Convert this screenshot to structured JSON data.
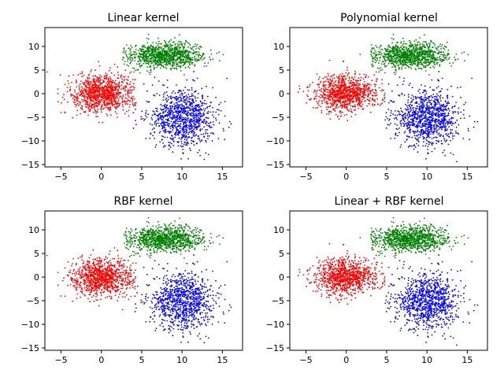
{
  "chart_data": [
    {
      "type": "scatter",
      "title": "Linear kernel",
      "xlabel": "",
      "ylabel": "",
      "xlim": [
        -7,
        17.5
      ],
      "ylim": [
        -15.5,
        14
      ],
      "xticks": [
        -5,
        0,
        5,
        10,
        15
      ],
      "yticks": [
        -15,
        -10,
        -5,
        0,
        5,
        10
      ],
      "grid": false,
      "boundary_cut": {
        "red_xmax": 4.2,
        "green_xmin": 2.6,
        "blue_xmin": 3.8
      },
      "series": [
        {
          "color": "#ff0000",
          "center": [
            0,
            0
          ],
          "spread": [
            1.9,
            2.0
          ],
          "count": 1000
        },
        {
          "color": "#008000",
          "center": [
            8,
            8
          ],
          "spread": [
            2.2,
            1.4
          ],
          "count": 1000
        },
        {
          "color": "#0000ff",
          "center": [
            10,
            -5
          ],
          "spread": [
            2.0,
            3.0
          ],
          "count": 1000
        }
      ]
    },
    {
      "type": "scatter",
      "title": "Polynomial kernel",
      "xlabel": "",
      "ylabel": "",
      "xlim": [
        -7,
        17.5
      ],
      "ylim": [
        -15.5,
        14
      ],
      "xticks": [
        -5,
        0,
        5,
        10,
        15
      ],
      "yticks": [
        -15,
        -10,
        -5,
        0,
        5,
        10
      ],
      "grid": false,
      "boundary_cut": {
        "red_xmax": 4.8,
        "green_xmin": 3.0,
        "blue_xmin": 4.8
      },
      "series": [
        {
          "color": "#ff0000",
          "center": [
            0,
            0
          ],
          "spread": [
            1.9,
            2.0
          ],
          "count": 1000
        },
        {
          "color": "#008000",
          "center": [
            8,
            8
          ],
          "spread": [
            2.2,
            1.4
          ],
          "count": 1000
        },
        {
          "color": "#0000ff",
          "center": [
            10,
            -5
          ],
          "spread": [
            2.0,
            3.0
          ],
          "count": 1000
        }
      ]
    },
    {
      "type": "scatter",
      "title": "RBF kernel",
      "xlabel": "",
      "ylabel": "",
      "xlim": [
        -7,
        17.5
      ],
      "ylim": [
        -15.5,
        14
      ],
      "xticks": [
        -5,
        0,
        5,
        10,
        15
      ],
      "yticks": [
        -15,
        -10,
        -5,
        0,
        5,
        10
      ],
      "grid": false,
      "boundary_cut": {
        "red_xmax": 4.3,
        "green_xmin": 2.8,
        "blue_xmin": 4.0
      },
      "series": [
        {
          "color": "#ff0000",
          "center": [
            0,
            0
          ],
          "spread": [
            1.9,
            2.0
          ],
          "count": 1000
        },
        {
          "color": "#008000",
          "center": [
            8,
            8
          ],
          "spread": [
            2.2,
            1.4
          ],
          "count": 1000
        },
        {
          "color": "#0000ff",
          "center": [
            10,
            -5
          ],
          "spread": [
            2.0,
            3.0
          ],
          "count": 1000
        }
      ]
    },
    {
      "type": "scatter",
      "title": "Linear + RBF kernel",
      "xlabel": "",
      "ylabel": "",
      "xlim": [
        -7,
        17.5
      ],
      "ylim": [
        -15.5,
        14
      ],
      "xticks": [
        -5,
        0,
        5,
        10,
        15
      ],
      "yticks": [
        -15,
        -10,
        -5,
        0,
        5,
        10
      ],
      "grid": false,
      "boundary_cut": {
        "red_xmax": 4.8,
        "green_xmin": 3.0,
        "blue_xmin": 4.8
      },
      "series": [
        {
          "color": "#ff0000",
          "center": [
            0,
            0
          ],
          "spread": [
            1.9,
            2.0
          ],
          "count": 1000
        },
        {
          "color": "#008000",
          "center": [
            8,
            8
          ],
          "spread": [
            2.2,
            1.4
          ],
          "count": 1000
        },
        {
          "color": "#0000ff",
          "center": [
            10,
            -5
          ],
          "spread": [
            2.0,
            3.0
          ],
          "count": 1000
        }
      ]
    }
  ]
}
